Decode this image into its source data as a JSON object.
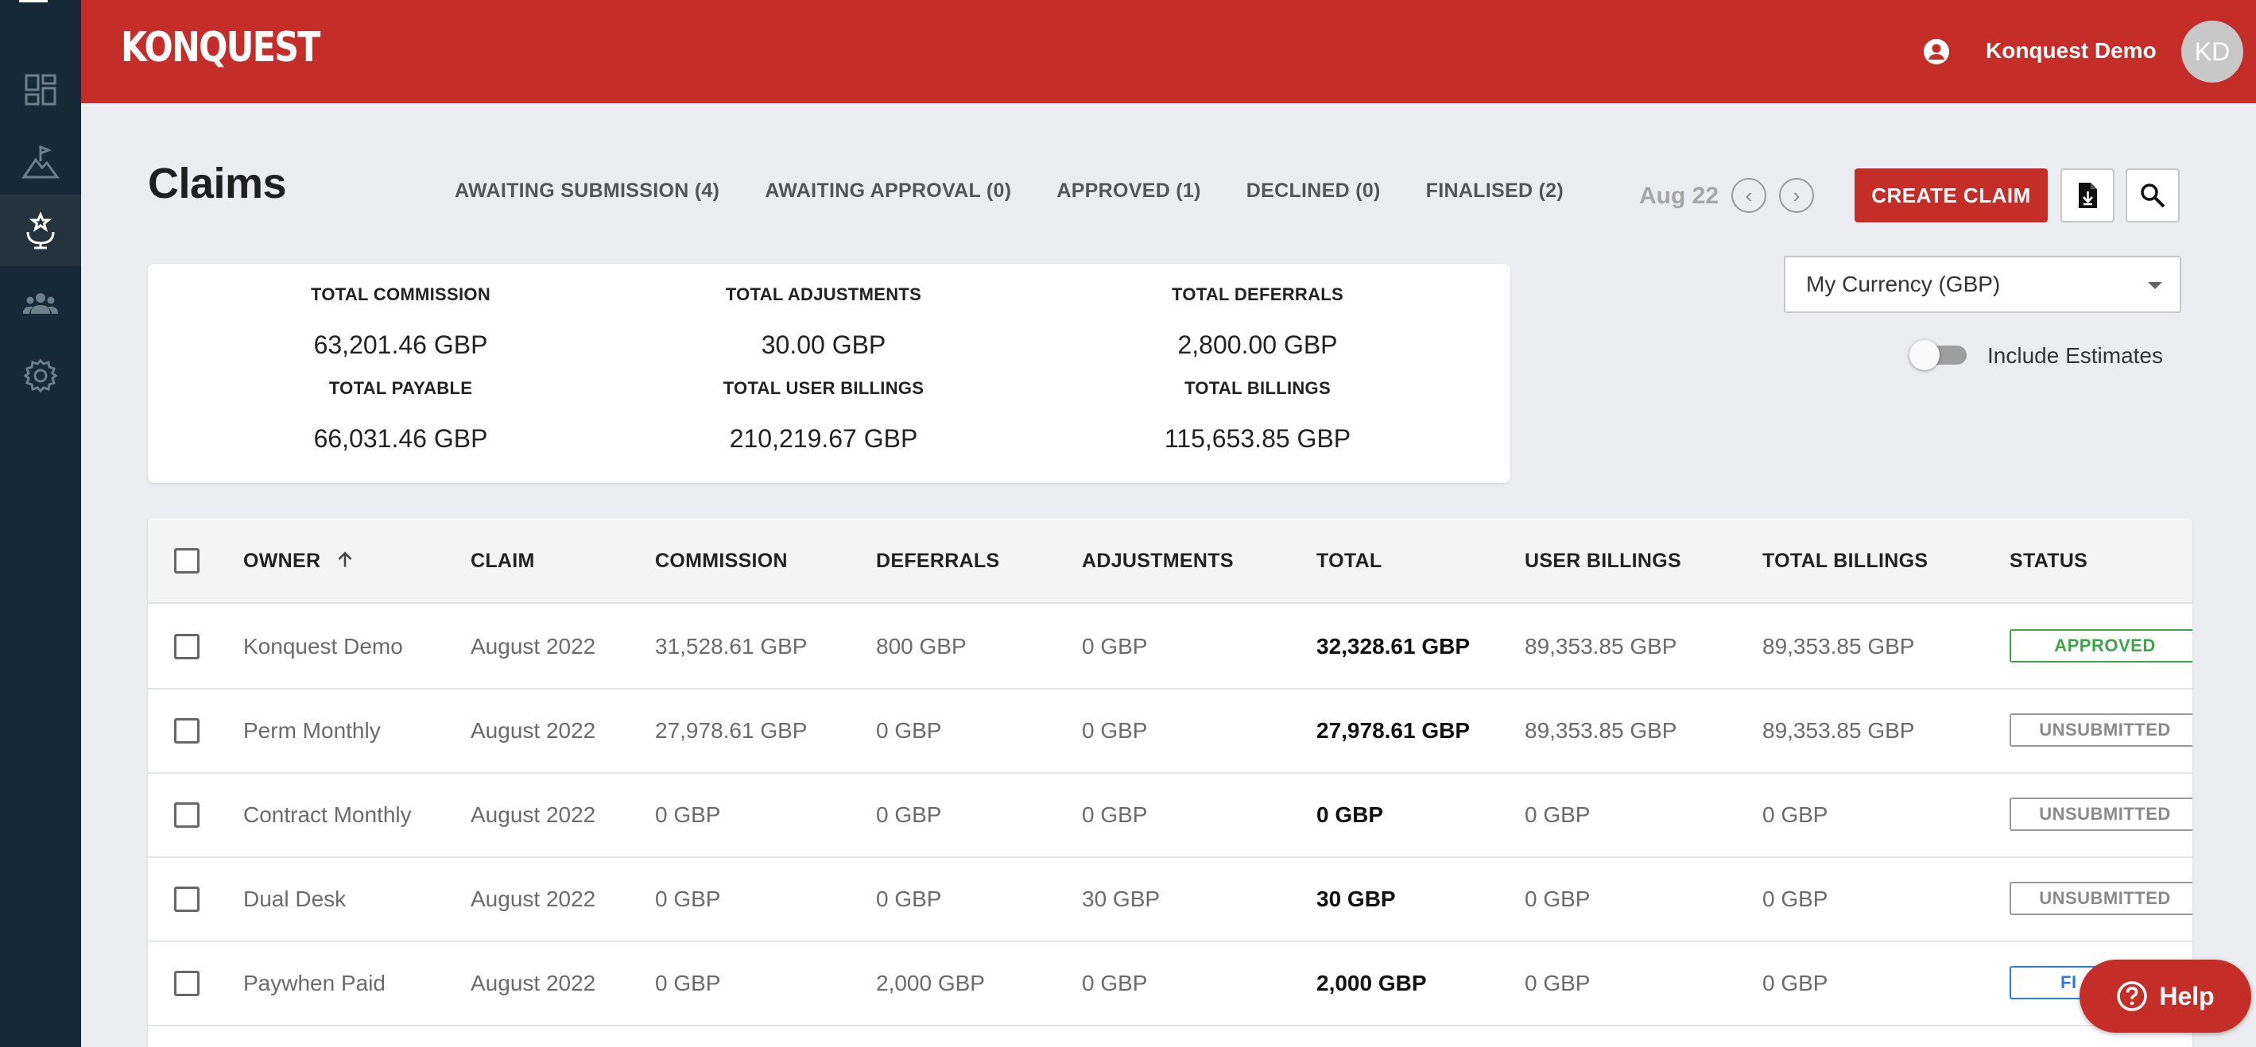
{
  "header": {
    "logo": "KONQUEST",
    "user_name": "Konquest Demo",
    "avatar_initials": "KD"
  },
  "sidebar": {
    "items": [
      "dashboard-icon",
      "mountain-flag-icon",
      "award-icon",
      "team-icon",
      "gear-icon"
    ],
    "active_index": 2
  },
  "page": {
    "title": "Claims",
    "tabs": [
      {
        "label": "AWAITING SUBMISSION (4)"
      },
      {
        "label": "AWAITING APPROVAL (0)"
      },
      {
        "label": "APPROVED (1)"
      },
      {
        "label": "DECLINED (0)"
      },
      {
        "label": "FINALISED (2)"
      }
    ],
    "period": "Aug 22",
    "prev_label": "‹",
    "next_label": "›",
    "create_label": "CREATE CLAIM"
  },
  "summary": {
    "total_commission_label": "TOTAL COMMISSION",
    "total_commission": "63,201.46 GBP",
    "total_adjustments_label": "TOTAL ADJUSTMENTS",
    "total_adjustments": "30.00 GBP",
    "total_deferrals_label": "TOTAL DEFERRALS",
    "total_deferrals": "2,800.00 GBP",
    "total_payable_label": "TOTAL PAYABLE",
    "total_payable": "66,031.46 GBP",
    "total_user_billings_label": "TOTAL USER BILLINGS",
    "total_user_billings": "210,219.67 GBP",
    "total_billings_label": "TOTAL BILLINGS",
    "total_billings": "115,653.85 GBP"
  },
  "currency": {
    "selected": "My Currency (GBP)"
  },
  "estimates": {
    "label": "Include Estimates",
    "on": false
  },
  "table": {
    "columns": {
      "owner": "OWNER",
      "claim": "CLAIM",
      "commission": "COMMISSION",
      "deferrals": "DEFERRALS",
      "adjustments": "ADJUSTMENTS",
      "total": "TOTAL",
      "user_billings": "USER BILLINGS",
      "total_billings": "TOTAL BILLINGS",
      "status": "STATUS"
    },
    "rows": [
      {
        "owner": "Konquest Demo",
        "claim": "August 2022",
        "commission": "31,528.61 GBP",
        "deferrals": "800 GBP",
        "adjustments": "0 GBP",
        "total": "32,328.61 GBP",
        "user_billings": "89,353.85 GBP",
        "total_billings": "89,353.85 GBP",
        "status": "APPROVED"
      },
      {
        "owner": "Perm Monthly",
        "claim": "August 2022",
        "commission": "27,978.61 GBP",
        "deferrals": "0 GBP",
        "adjustments": "0 GBP",
        "total": "27,978.61 GBP",
        "user_billings": "89,353.85 GBP",
        "total_billings": "89,353.85 GBP",
        "status": "UNSUBMITTED"
      },
      {
        "owner": "Contract Monthly",
        "claim": "August 2022",
        "commission": "0 GBP",
        "deferrals": "0 GBP",
        "adjustments": "0 GBP",
        "total": "0 GBP",
        "user_billings": "0 GBP",
        "total_billings": "0 GBP",
        "status": "UNSUBMITTED"
      },
      {
        "owner": "Dual Desk",
        "claim": "August 2022",
        "commission": "0 GBP",
        "deferrals": "0 GBP",
        "adjustments": "30 GBP",
        "total": "30 GBP",
        "user_billings": "0 GBP",
        "total_billings": "0 GBP",
        "status": "UNSUBMITTED"
      },
      {
        "owner": "Paywhen Paid",
        "claim": "August 2022",
        "commission": "0 GBP",
        "deferrals": "2,000 GBP",
        "adjustments": "0 GBP",
        "total": "2,000 GBP",
        "user_billings": "0 GBP",
        "total_billings": "0 GBP",
        "status": "FI"
      }
    ]
  },
  "help": {
    "label": "Help"
  },
  "colors": {
    "brand": "#c42d28",
    "sidebar": "#152a36",
    "approved": "#3ea646",
    "unsubmitted": "#9a9a9a",
    "finalised": "#2e7ad8"
  }
}
